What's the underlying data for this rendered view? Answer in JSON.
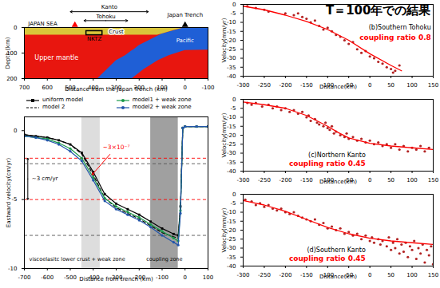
{
  "chart_data": [
    {
      "type": "section",
      "xlabel": "Distance from the Japan Trench (km)",
      "ylabel": "Depth (km)",
      "xlim": [
        700,
        -100
      ],
      "ylim": [
        200,
        0
      ],
      "xticks": [
        700,
        600,
        500,
        400,
        300,
        200,
        100,
        0,
        -100
      ],
      "yticks": [
        0,
        100,
        200
      ],
      "mantle": {
        "label": "Upper mantle",
        "color": "#e8160f",
        "x": [
          700,
          -100
        ],
        "depth_top": [
          0,
          0
        ],
        "depth_bottom": [
          200,
          200
        ],
        "label_at": [
          560,
          120
        ]
      },
      "slab": {
        "label": "Pacific",
        "color": "#1f5fd6",
        "depth": [
          0,
          25,
          50,
          70,
          88,
          90,
          110,
          130,
          165,
          200
        ],
        "x_east": [
          -100,
          -100,
          -100,
          -100,
          -100,
          0,
          70,
          118,
          180,
          230
        ],
        "x_west": [
          0,
          100,
          155,
          200,
          225,
          230,
          260,
          300,
          340,
          380
        ],
        "label_at": [
          0,
          50
        ]
      },
      "crust": {
        "label": "Crust",
        "color": "#d9c53a",
        "x": [
          700,
          120,
          100,
          50,
          0
        ],
        "depth_top": [
          0,
          0,
          0,
          0,
          0
        ],
        "depth_bottom": [
          30,
          30,
          25,
          12,
          0
        ],
        "label_at": [
          300,
          15
        ]
      },
      "nktz": {
        "label": "NKTZ",
        "x1": 430,
        "x2": 360,
        "depth1": 14,
        "depth2": 30,
        "label_at": [
          395,
          45
        ]
      },
      "spans": [
        {
          "label": "Kanto",
          "x1": 500,
          "x2": 160,
          "depth": -62,
          "label_depth": -80
        },
        {
          "label": "Tohoku",
          "x1": 440,
          "x2": 250,
          "depth": -27,
          "label_depth": -44
        }
      ],
      "texts": [
        {
          "text": "JAPAN SEA",
          "x": 620,
          "depth": -16
        },
        {
          "text": "Japan Trench",
          "x": 0,
          "depth": -50
        }
      ],
      "markers": [
        {
          "x": 480,
          "depth": 0,
          "color": "#ff0000",
          "marker": "triangle"
        },
        {
          "x": 0,
          "depth": 0,
          "color": "#000000",
          "marker": "triangle"
        }
      ]
    },
    {
      "type": "line",
      "xlabel": "Distance from trench (km)",
      "ylabel": "Eastward velocity(cm/yr)",
      "xlim": [
        -700,
        100
      ],
      "ylim": [
        -10,
        1
      ],
      "xticks": [
        -700,
        -600,
        -500,
        -400,
        -300,
        -200,
        -100,
        0,
        100
      ],
      "yticks": [
        -10,
        -5,
        0
      ],
      "legend": "top",
      "x": [
        -700,
        -650,
        -600,
        -550,
        -500,
        -450,
        -400,
        -350,
        -300,
        -250,
        -200,
        -150,
        -100,
        -50,
        -30,
        -20,
        -10,
        0,
        50,
        100
      ],
      "series": [
        {
          "name": "uniform model",
          "color": "#000000",
          "line_style": "solid",
          "marker": "square",
          "values": [
            -0.3,
            -0.4,
            -0.5,
            -0.7,
            -1.0,
            -1.6,
            -3.0,
            -4.6,
            -5.3,
            -5.7,
            -6.1,
            -6.6,
            -7.1,
            -7.5,
            -7.6,
            -5.5,
            0.2,
            0.3,
            0.3,
            0.3
          ]
        },
        {
          "name": "model 2",
          "color": "#000000",
          "line_style": "dashed",
          "values": [
            -0.3,
            -0.4,
            -0.5,
            -0.7,
            -1.0,
            -1.7,
            -3.2,
            -4.9,
            -5.6,
            -6.0,
            -6.4,
            -6.9,
            -7.4,
            -7.7,
            -7.8,
            -5.6,
            0.2,
            0.3,
            0.3,
            0.3
          ]
        },
        {
          "name": "model1 + weak zone",
          "color": "#1a9a4a",
          "line_style": "solid",
          "marker": "circle",
          "values": [
            -0.4,
            -0.5,
            -0.6,
            -0.9,
            -1.3,
            -2.0,
            -3.4,
            -4.9,
            -5.5,
            -5.9,
            -6.3,
            -6.8,
            -7.3,
            -7.8,
            -8.0,
            -5.8,
            0.2,
            0.3,
            0.3,
            0.3
          ]
        },
        {
          "name": "model2 + weak zone",
          "color": "#2255aa",
          "line_style": "solid",
          "marker": "circle",
          "values": [
            -0.4,
            -0.5,
            -0.7,
            -1.0,
            -1.5,
            -2.2,
            -3.6,
            -5.1,
            -5.7,
            -6.1,
            -6.5,
            -7.0,
            -7.6,
            -8.1,
            -8.3,
            -6.0,
            0.2,
            0.3,
            0.3,
            0.3
          ]
        }
      ],
      "bands": [
        {
          "label": "viscoelasitc lower crust + weak zone",
          "x1": -450,
          "x2": -370,
          "color": "#dddddd",
          "label_x": -470,
          "label_y": -9.3
        },
        {
          "label": "coupling zone",
          "x1": -150,
          "x2": -30,
          "color": "#a0a0a0",
          "label_x": -90,
          "label_y": -9.3
        }
      ],
      "reference_lines": [
        {
          "y": -2,
          "color": "#ff0000",
          "line_style": "dashed"
        },
        {
          "y": -5,
          "color": "#ff0000",
          "line_style": "dashed"
        },
        {
          "y": -2.4,
          "color": "#555555",
          "line_style": "dashed"
        },
        {
          "y": -7.6,
          "color": "#555555",
          "line_style": "dashed"
        }
      ],
      "annotations": [
        {
          "text": "~3×10⁻⁷",
          "x": -300,
          "y": -1.2,
          "color": "#ff0000",
          "arrow_to": [
            -405,
            -3.2
          ]
        },
        {
          "text": "~3 cm/yr",
          "x": -685,
          "y": -3.5,
          "color": "#000000",
          "bracket": [
            -2,
            -5
          ]
        }
      ]
    },
    {
      "type": "scatter",
      "title": "(b)Southern Tohoku",
      "subtitle": "coupling ratio 0.8",
      "note": "T＝100年での結果",
      "label_x": 145,
      "label_y": [
        -13,
        -18.5
      ],
      "xlabel": "Distance(km)",
      "ylabel": "Velocity(mm/yr)",
      "xlim": [
        -300,
        150
      ],
      "ylim": [
        -40,
        0
      ],
      "xticks": [
        -300,
        -250,
        -200,
        -150,
        -100,
        -50,
        0,
        50,
        100,
        150
      ],
      "yticks": [
        -40,
        -35,
        -30,
        -25,
        -20,
        -15,
        -10,
        -5,
        0
      ],
      "points": {
        "color": "#b22222",
        "x": [
          -290,
          -270,
          -250,
          -240,
          -200,
          -180,
          -170,
          -160,
          -150,
          -140,
          -130,
          -120,
          -110,
          -100,
          -90,
          -80,
          -70,
          -60,
          -50,
          -40,
          -30,
          -20,
          -10,
          0,
          10,
          20,
          30,
          40,
          50,
          55,
          60,
          70
        ],
        "y": [
          -1,
          -2,
          -3,
          -4,
          -5,
          -6,
          -5,
          -7,
          -8,
          -10,
          -9,
          -12,
          -14,
          -13,
          -15,
          -17,
          -18,
          -20,
          -22,
          -21,
          -25,
          -27,
          -26,
          -29,
          -30,
          -32,
          -33,
          -35,
          -36,
          -38,
          -37,
          -34
        ]
      },
      "fit": {
        "color": "#ff0000",
        "x": [
          -300,
          -250,
          -200,
          -150,
          -100,
          -50,
          0,
          50,
          75
        ],
        "y": [
          -1,
          -3,
          -6,
          -9.5,
          -14,
          -20,
          -27.5,
          -34,
          -37
        ]
      }
    },
    {
      "type": "scatter",
      "title": "(c)Northern Kanto",
      "subtitle": "coupling ratio 0.45",
      "label_x": -10,
      "label_y": [
        -31,
        -36
      ],
      "xlabel": "Distance(km)",
      "ylabel": "Velocity(mm/yr)",
      "xlim": [
        -300,
        150
      ],
      "ylim": [
        -40,
        0
      ],
      "xticks": [
        -300,
        -250,
        -200,
        -150,
        -100,
        -50,
        0,
        50,
        100,
        150
      ],
      "yticks": [
        -40,
        -35,
        -30,
        -25,
        -20,
        -15,
        -10,
        -5,
        0
      ],
      "points": {
        "color": "#b22222",
        "x": [
          -290,
          -280,
          -270,
          -255,
          -240,
          -230,
          -220,
          -210,
          -200,
          -190,
          -180,
          -170,
          -160,
          -150,
          -145,
          -140,
          -130,
          -125,
          -120,
          -110,
          -105,
          -100,
          -95,
          -90,
          -85,
          -80,
          -70,
          -60,
          -55,
          -50,
          -40,
          -30,
          -20,
          -10,
          0,
          10,
          20,
          30,
          40,
          50,
          60,
          70,
          80,
          90,
          100,
          110,
          120,
          130,
          140
        ],
        "y": [
          -2,
          -3,
          -2,
          -4,
          -3,
          -5,
          -4,
          -6,
          -5,
          -7,
          -6,
          -8,
          -7,
          -10,
          -9,
          -12,
          -11,
          -13,
          -14,
          -15,
          -13,
          -16,
          -17,
          -15,
          -19,
          -18,
          -20,
          -21,
          -19,
          -22,
          -21,
          -23,
          -22,
          -24,
          -23,
          -25,
          -24,
          -26,
          -25,
          -27,
          -25,
          -28,
          -26,
          -29,
          -27,
          -28,
          -26,
          -29,
          -27
        ]
      },
      "fit": {
        "color": "#ff0000",
        "x": [
          -300,
          -250,
          -200,
          -150,
          -100,
          -75,
          -50,
          0,
          50,
          100,
          150
        ],
        "y": [
          -1.5,
          -3,
          -5,
          -9,
          -15,
          -18.5,
          -21.5,
          -24.5,
          -26,
          -27,
          -28
        ]
      }
    },
    {
      "type": "scatter",
      "title": "(d)Southern Kanto",
      "subtitle": "coupling ratio 0.45",
      "label_x": -10,
      "label_y": [
        -31,
        -36
      ],
      "xlabel": "Distance(km)",
      "ylabel": "Velocity(mm/yr)",
      "xlim": [
        -300,
        150
      ],
      "ylim": [
        -40,
        0
      ],
      "xticks": [
        -300,
        -250,
        -200,
        -150,
        -100,
        -50,
        0,
        50,
        100,
        150
      ],
      "yticks": [
        -40,
        -35,
        -30,
        -25,
        -20,
        -15,
        -10,
        -5,
        0
      ],
      "points": {
        "color": "#b22222",
        "x": [
          -295,
          -280,
          -270,
          -260,
          -250,
          -240,
          -230,
          -220,
          -210,
          -200,
          -190,
          -180,
          -170,
          -160,
          -150,
          -140,
          -130,
          -120,
          -110,
          -100,
          -90,
          -80,
          -70,
          -60,
          -50,
          -40,
          -30,
          -20,
          -10,
          0,
          5,
          10,
          20,
          25,
          30,
          40,
          45,
          50,
          55,
          60,
          65,
          70,
          75,
          80,
          85,
          90,
          95,
          100,
          105,
          110,
          115,
          120,
          125,
          130,
          135,
          140,
          145,
          150
        ],
        "y": [
          -3,
          -4,
          -6,
          -5,
          -7,
          -6,
          -8,
          -9,
          -8,
          -10,
          -11,
          -10,
          -12,
          -13,
          -14,
          -15,
          -14,
          -17,
          -16,
          -19,
          -18,
          -20,
          -19,
          -22,
          -21,
          -23,
          -22,
          -25,
          -23,
          -26,
          -24,
          -27,
          -25,
          -28,
          -26,
          -29,
          -24,
          -31,
          -27,
          -30,
          -25,
          -33,
          -28,
          -32,
          -27,
          -35,
          -29,
          -31,
          -26,
          -36,
          -30,
          -33,
          -28,
          -38,
          -31,
          -34,
          -29,
          -39
        ]
      },
      "fit": {
        "color": "#ff0000",
        "x": [
          -300,
          -250,
          -200,
          -150,
          -100,
          -50,
          0,
          50,
          100,
          150
        ],
        "y": [
          -3.5,
          -6,
          -9.5,
          -14,
          -18.5,
          -22,
          -24.5,
          -26,
          -27,
          -28
        ]
      }
    }
  ]
}
